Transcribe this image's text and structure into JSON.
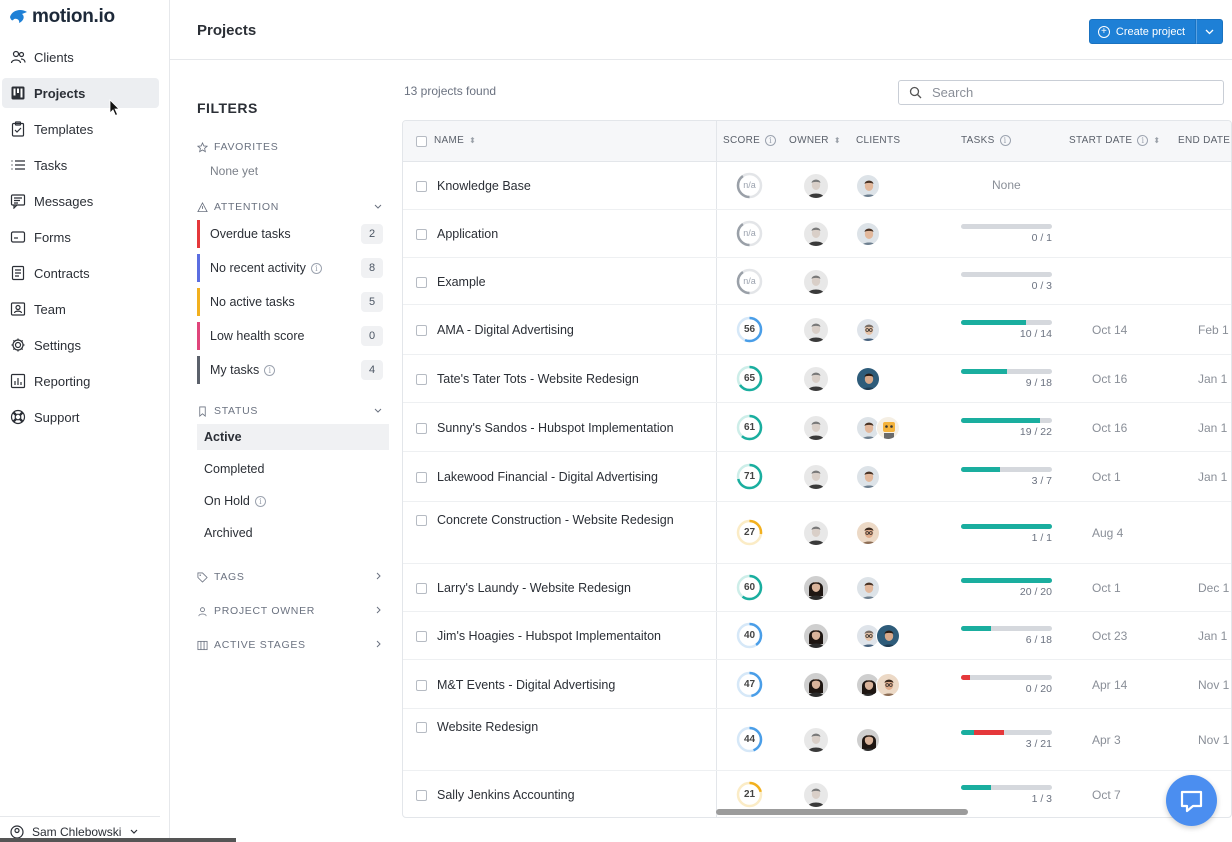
{
  "brand": {
    "name": "motion.io",
    "color": "#1e80d6"
  },
  "sidebar": {
    "items": [
      {
        "label": "Clients",
        "icon": "users-icon"
      },
      {
        "label": "Projects",
        "icon": "kanban-icon",
        "active": true
      },
      {
        "label": "Templates",
        "icon": "clipboard-icon"
      },
      {
        "label": "Tasks",
        "icon": "list-icon"
      },
      {
        "label": "Messages",
        "icon": "message-icon"
      },
      {
        "label": "Forms",
        "icon": "form-icon"
      },
      {
        "label": "Contracts",
        "icon": "document-icon"
      },
      {
        "label": "Team",
        "icon": "id-card-icon"
      },
      {
        "label": "Settings",
        "icon": "gear-icon"
      },
      {
        "label": "Reporting",
        "icon": "chart-icon"
      },
      {
        "label": "Support",
        "icon": "lifebuoy-icon"
      }
    ],
    "user": "Sam Chlebowski"
  },
  "header": {
    "title": "Projects",
    "create_label": "Create project"
  },
  "filters": {
    "title": "FILTERS",
    "favorites": {
      "label": "FAVORITES",
      "empty": "None yet"
    },
    "attention": {
      "label": "ATTENTION",
      "items": [
        {
          "label": "Overdue tasks",
          "count": "2",
          "color": "#e5383b",
          "info": false
        },
        {
          "label": "No recent activity",
          "count": "8",
          "color": "#5b6ee1",
          "info": true
        },
        {
          "label": "No active tasks",
          "count": "5",
          "color": "#f2b01e",
          "info": false
        },
        {
          "label": "Low health score",
          "count": "0",
          "color": "#e0457b",
          "info": false
        },
        {
          "label": "My tasks",
          "count": "4",
          "color": "#5b616b",
          "info": true
        }
      ]
    },
    "status": {
      "label": "STATUS",
      "items": [
        {
          "label": "Active",
          "active": true,
          "info": false
        },
        {
          "label": "Completed",
          "active": false,
          "info": false
        },
        {
          "label": "On Hold",
          "active": false,
          "info": true
        },
        {
          "label": "Archived",
          "active": false,
          "info": false
        }
      ]
    },
    "tags": {
      "label": "TAGS"
    },
    "project_owner": {
      "label": "PROJECT OWNER"
    },
    "active_stages": {
      "label": "ACTIVE STAGES"
    }
  },
  "results": {
    "count_text": "13 projects found",
    "search_placeholder": "Search"
  },
  "table": {
    "columns": {
      "name": "NAME",
      "score": "SCORE",
      "owner": "OWNER",
      "clients": "CLIENTS",
      "tasks": "TASKS",
      "start": "START DATE",
      "end": "END DATE"
    },
    "none_label": "None",
    "rows": [
      {
        "name": "Knowledge Base",
        "score": "n/a",
        "owner": "male-gray",
        "clients": [
          "male-beard"
        ],
        "tasks_done": null,
        "tasks_total": null,
        "tasks_text": "",
        "start": "",
        "end": "",
        "overdue": 0
      },
      {
        "name": "Application",
        "score": "n/a",
        "owner": "male-gray",
        "clients": [
          "male-beard"
        ],
        "tasks_done": 0,
        "tasks_total": 1,
        "tasks_text": "0 / 1",
        "start": "",
        "end": "",
        "overdue": 0
      },
      {
        "name": "Example",
        "score": "n/a",
        "owner": "male-gray",
        "clients": [],
        "tasks_done": 0,
        "tasks_total": 3,
        "tasks_text": "0 / 3",
        "start": "",
        "end": "",
        "overdue": 0
      },
      {
        "name": "AMA - Digital Advertising",
        "score": "56",
        "owner": "male-gray",
        "clients": [
          "male-glasses"
        ],
        "tasks_done": 10,
        "tasks_total": 14,
        "tasks_text": "10 / 14",
        "start": "Oct 14",
        "end": "Feb 1",
        "overdue": 0
      },
      {
        "name": "Tate's Tater Tots - Website Redesign",
        "score": "65",
        "owner": "male-gray",
        "clients": [
          "male-blue"
        ],
        "tasks_done": 9,
        "tasks_total": 18,
        "tasks_text": "9 / 18",
        "start": "Oct 16",
        "end": "Jan 1",
        "overdue": 0
      },
      {
        "name": "Sunny's Sandos - Hubspot Implementation",
        "score": "61",
        "owner": "male-gray",
        "clients": [
          "male-beard",
          "robot"
        ],
        "tasks_done": 19,
        "tasks_total": 22,
        "tasks_text": "19 / 22",
        "start": "Oct 16",
        "end": "Jan 1",
        "overdue": 0
      },
      {
        "name": "Lakewood Financial - Digital Advertising",
        "score": "71",
        "owner": "male-gray",
        "clients": [
          "male-beard"
        ],
        "tasks_done": 3,
        "tasks_total": 7,
        "tasks_text": "3 / 7",
        "start": "Oct 1",
        "end": "Jan 1",
        "overdue": 0
      },
      {
        "name": "Concrete Construction - Website Redesign",
        "score": "27",
        "owner": "male-gray",
        "clients": [
          "male-glasses-warm"
        ],
        "tasks_done": 1,
        "tasks_total": 1,
        "tasks_text": "1 / 1",
        "start": "Aug 4",
        "end": "",
        "overdue": 0
      },
      {
        "name": "Larry's Laundy - Website Redesign",
        "score": "60",
        "owner": "female-dark",
        "clients": [
          "male-beard"
        ],
        "tasks_done": 20,
        "tasks_total": 20,
        "tasks_text": "20 / 20",
        "start": "Oct 1",
        "end": "Dec 1",
        "overdue": 0
      },
      {
        "name": "Jim's Hoagies - Hubspot Implementaiton",
        "score": "40",
        "owner": "female-dark",
        "clients": [
          "male-glasses",
          "male-blue"
        ],
        "tasks_done": 6,
        "tasks_total": 18,
        "tasks_text": "6 / 18",
        "start": "Oct 23",
        "end": "Jan 1",
        "overdue": 0
      },
      {
        "name": "M&T Events - Digital Advertising",
        "score": "47",
        "owner": "female-dark",
        "clients": [
          "female-dark",
          "male-glasses-warm"
        ],
        "tasks_done": 0,
        "tasks_total": 20,
        "tasks_text": "0 / 20",
        "start": "Apr 14",
        "end": "Nov 1",
        "overdue": 2
      },
      {
        "name": "Website Redesign",
        "score": "44",
        "owner": "male-gray",
        "clients": [
          "female-dark"
        ],
        "tasks_done": 3,
        "tasks_total": 21,
        "tasks_text": "3 / 21",
        "start": "Apr 3",
        "end": "Nov 1",
        "overdue": 7
      },
      {
        "name": "Sally Jenkins Accounting",
        "score": "21",
        "owner": "male-gray",
        "clients": [],
        "tasks_done": 1,
        "tasks_total": 3,
        "tasks_text": "1 / 3",
        "start": "Oct 7",
        "end": "",
        "overdue": 0
      }
    ]
  },
  "colors": {
    "progress": "#1aae9f",
    "overdue": "#e5383b",
    "score_high": "#1aae9f",
    "score_mid": "#4a9ee8",
    "score_low": "#f2b01e"
  }
}
